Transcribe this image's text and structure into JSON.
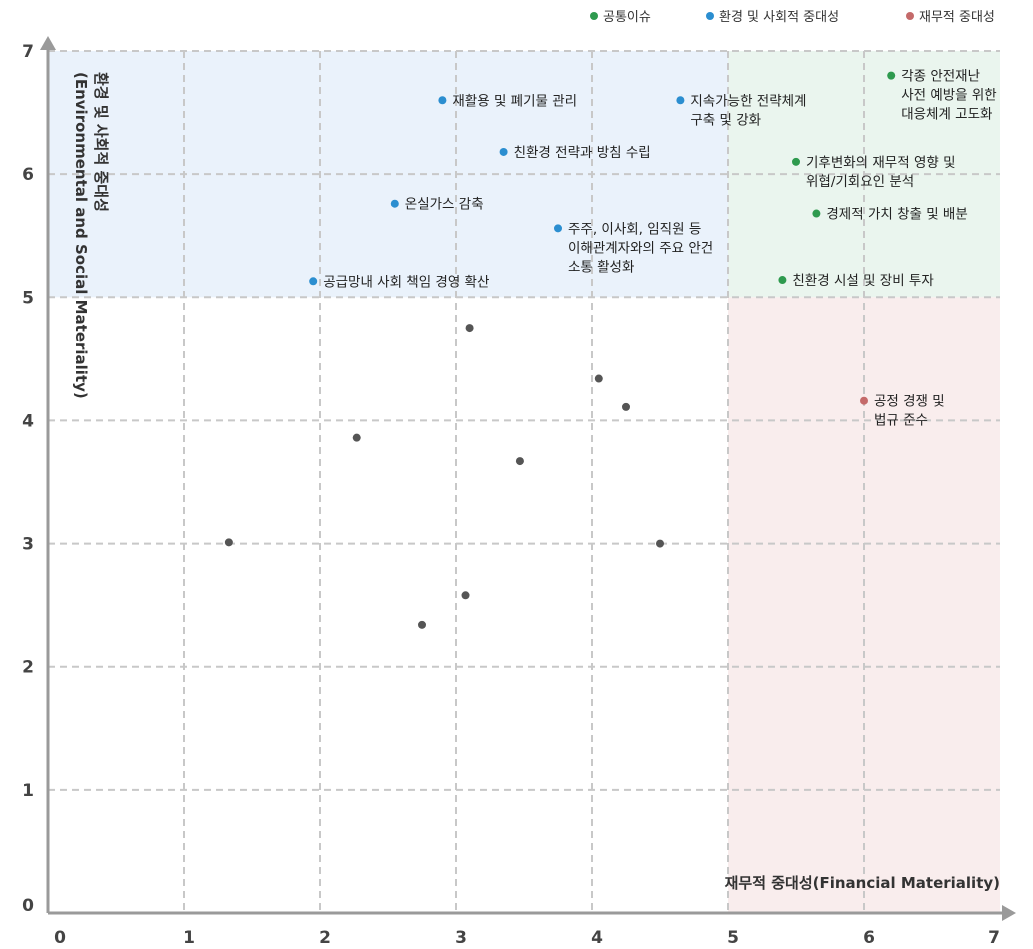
{
  "chart_data": {
    "type": "scatter",
    "title": "",
    "xlabel": "재무적 중대성(Financial Materiality)",
    "ylabel_line1": "환경 및 사회적 중대성",
    "ylabel_line2": "(Environmental and Social Materiality)",
    "xlim": [
      0,
      7
    ],
    "ylim": [
      0,
      7
    ],
    "x_ticks": [
      "0",
      "1",
      "2",
      "3",
      "4",
      "5",
      "6",
      "7"
    ],
    "y_ticks": [
      "0",
      "1",
      "2",
      "3",
      "4",
      "5",
      "6",
      "7"
    ],
    "grid": true,
    "thresholds": {
      "x": 5,
      "y": 5
    },
    "legend_position": "top-right",
    "regions": [
      {
        "name": "환경 및 사회적 중대성",
        "x": [
          0,
          5
        ],
        "y": [
          5,
          7
        ],
        "color": "#eaf2fb"
      },
      {
        "name": "공통이슈",
        "x": [
          5,
          7
        ],
        "y": [
          5,
          7
        ],
        "color": "#eaf5ee"
      },
      {
        "name": "재무적 중대성",
        "x": [
          5,
          7
        ],
        "y": [
          0,
          5
        ],
        "color": "#f9eded"
      }
    ],
    "series": [
      {
        "name": "공통이슈",
        "color": "#2e9a4e",
        "points": [
          {
            "x": 6.2,
            "y": 6.8,
            "label": [
              "각종 안전재난",
              "사전 예방을 위한",
              "대응체계 고도화"
            ]
          },
          {
            "x": 5.5,
            "y": 6.1,
            "label": [
              "기후변화의 재무적 영향 및",
              "위협/기회요인 분석"
            ]
          },
          {
            "x": 5.65,
            "y": 5.68,
            "label": [
              "경제적 가치 창출 및 배분"
            ]
          },
          {
            "x": 5.4,
            "y": 5.14,
            "label": [
              "친환경 시설 및 장비 투자"
            ]
          }
        ]
      },
      {
        "name": "환경 및 사회적 중대성",
        "color": "#2b8ed0",
        "points": [
          {
            "x": 2.9,
            "y": 6.6,
            "label": [
              "재활용 및 폐기물 관리"
            ]
          },
          {
            "x": 4.65,
            "y": 6.6,
            "label": [
              "지속가능한 전략체계",
              "구축 및 강화"
            ]
          },
          {
            "x": 3.35,
            "y": 6.18,
            "label": [
              "친환경 전략과 방침 수립"
            ]
          },
          {
            "x": 2.55,
            "y": 5.76,
            "label": [
              "온실가스 감축"
            ]
          },
          {
            "x": 3.75,
            "y": 5.56,
            "label": [
              "주주, 이사회, 임직원 등",
              "이해관계자와의 주요 안건",
              "소통 활성화"
            ]
          },
          {
            "x": 1.95,
            "y": 5.13,
            "label": [
              "공급망내 사회 책임 경영 확산"
            ]
          }
        ]
      },
      {
        "name": "재무적 중대성",
        "color": "#c46a6a",
        "points": [
          {
            "x": 6.0,
            "y": 4.16,
            "label": [
              "공정 경쟁 및",
              "법규 준수"
            ]
          }
        ]
      },
      {
        "name": "",
        "color": "#555555",
        "points": [
          {
            "x": 3.1,
            "y": 4.75
          },
          {
            "x": 4.05,
            "y": 4.34
          },
          {
            "x": 4.25,
            "y": 4.11
          },
          {
            "x": 2.27,
            "y": 3.86
          },
          {
            "x": 3.47,
            "y": 3.67
          },
          {
            "x": 1.33,
            "y": 3.01
          },
          {
            "x": 4.5,
            "y": 3.0
          },
          {
            "x": 3.07,
            "y": 2.58
          },
          {
            "x": 2.75,
            "y": 2.34
          }
        ]
      }
    ],
    "legend": [
      {
        "name": "공통이슈",
        "color": "#2e9a4e"
      },
      {
        "name": "환경 및 사회적 중대성",
        "color": "#2b8ed0"
      },
      {
        "name": "재무적 중대성",
        "color": "#c46a6a"
      }
    ]
  }
}
